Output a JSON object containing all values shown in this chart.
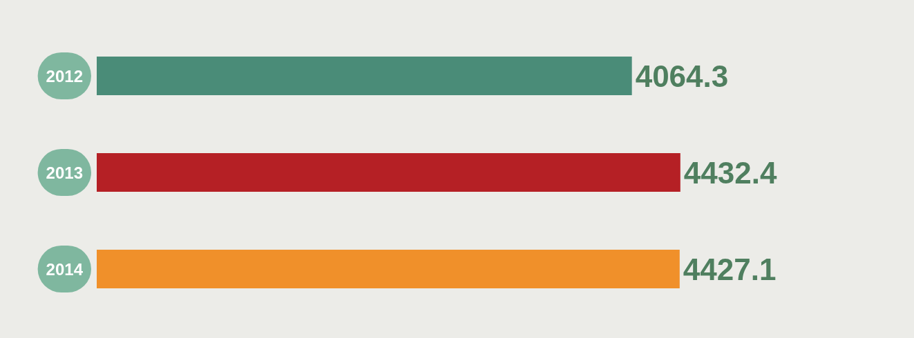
{
  "chart_data": {
    "type": "bar",
    "orientation": "horizontal",
    "categories": [
      "2012",
      "2013",
      "2014"
    ],
    "values": [
      4064.3,
      4432.4,
      4427.1
    ],
    "colors": [
      "#4a8c78",
      "#b52025",
      "#f0902a"
    ],
    "data_labels": true
  }
}
